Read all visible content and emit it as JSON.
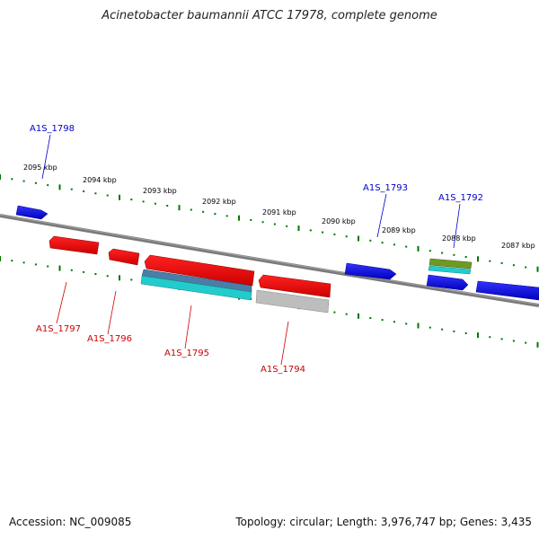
{
  "title": "Acinetobacter baumannii ATCC 17978, complete genome",
  "footer": {
    "accession": "Accession: NC_009085",
    "summary": "Topology: circular; Length: 3,976,747 bp; Genes: 3,435"
  },
  "colors": {
    "backbone": "#808080",
    "tick": "#007700",
    "forward_gene": "#0000dd",
    "reverse_gene": "#ee0000",
    "forward_label": "#0000cc",
    "reverse_label": "#cc0000",
    "feature_gray": "#b8b8b8",
    "feature_teal": "#2ad4d4",
    "feature_steel": "#4477aa",
    "feature_olive": "#779922"
  },
  "kbp_labels": [
    "2095 kbp",
    "2094 kbp",
    "2093 kbp",
    "2092 kbp",
    "2091 kbp",
    "2090 kbp",
    "2089 kbp",
    "2088 kbp",
    "2087 kbp"
  ],
  "forward_gene_labels": [
    "A1S_1798",
    "A1S_1793",
    "A1S_1792"
  ],
  "reverse_gene_labels": [
    "A1S_1797",
    "A1S_1796",
    "A1S_1795",
    "A1S_1794"
  ]
}
